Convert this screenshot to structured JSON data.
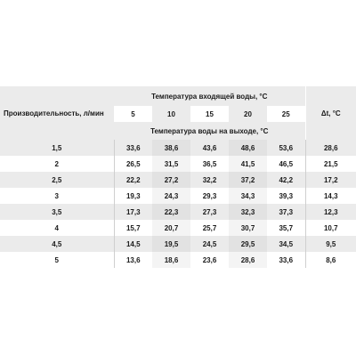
{
  "table": {
    "row_header": "Производительность, л/мин",
    "inlet_header": "Температура входящей воды, °С",
    "outlet_header": "Температура воды на выходе, °С",
    "delta_header": "Δt, °С",
    "inlet_temps": [
      "5",
      "10",
      "15",
      "20",
      "25"
    ],
    "rows": [
      {
        "flow": "1,5",
        "values": [
          "33,6",
          "38,6",
          "43,6",
          "48,6",
          "53,6"
        ],
        "delta": "28,6"
      },
      {
        "flow": "2",
        "values": [
          "26,5",
          "31,5",
          "36,5",
          "41,5",
          "46,5"
        ],
        "delta": "21,5"
      },
      {
        "flow": "2,5",
        "values": [
          "22,2",
          "27,2",
          "32,2",
          "37,2",
          "42,2"
        ],
        "delta": "17,2"
      },
      {
        "flow": "3",
        "values": [
          "19,3",
          "24,3",
          "29,3",
          "34,3",
          "39,3"
        ],
        "delta": "14,3"
      },
      {
        "flow": "3,5",
        "values": [
          "17,3",
          "22,3",
          "27,3",
          "32,3",
          "37,3"
        ],
        "delta": "12,3"
      },
      {
        "flow": "4",
        "values": [
          "15,7",
          "20,7",
          "25,7",
          "30,7",
          "35,7"
        ],
        "delta": "10,7"
      },
      {
        "flow": "4,5",
        "values": [
          "14,5",
          "19,5",
          "24,5",
          "29,5",
          "34,5"
        ],
        "delta": "9,5"
      },
      {
        "flow": "5",
        "values": [
          "13,6",
          "18,6",
          "23,6",
          "28,6",
          "33,6"
        ],
        "delta": "8,6"
      }
    ]
  }
}
